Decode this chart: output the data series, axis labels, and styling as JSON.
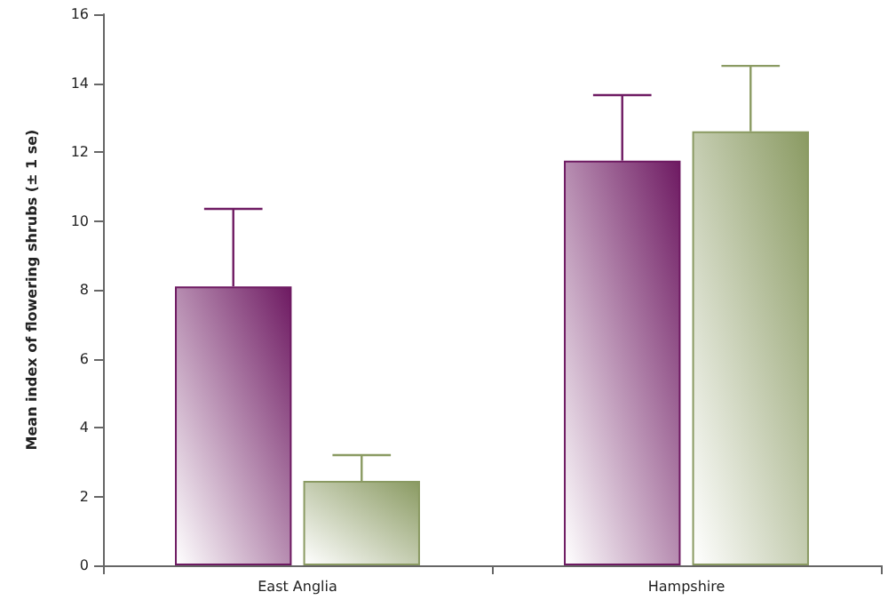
{
  "chart_data": {
    "type": "bar",
    "ylabel": "Mean index of flowering shrubs (± 1 se)",
    "categories": [
      "East Anglia",
      "Hampshire"
    ],
    "series": [
      {
        "color": "#6e1a62",
        "values": [
          8.1,
          11.75
        ],
        "errors": [
          [
            8.1,
            10.35
          ],
          [
            11.75,
            13.65
          ]
        ]
      },
      {
        "color": "#8a9a62",
        "values": [
          2.45,
          12.6
        ],
        "errors": [
          [
            2.45,
            3.2
          ],
          [
            12.6,
            14.5
          ]
        ]
      }
    ],
    "ylim": [
      0,
      16
    ],
    "yticks": [
      0,
      2,
      4,
      6,
      8,
      10,
      12,
      14,
      16
    ],
    "grid": false
  }
}
